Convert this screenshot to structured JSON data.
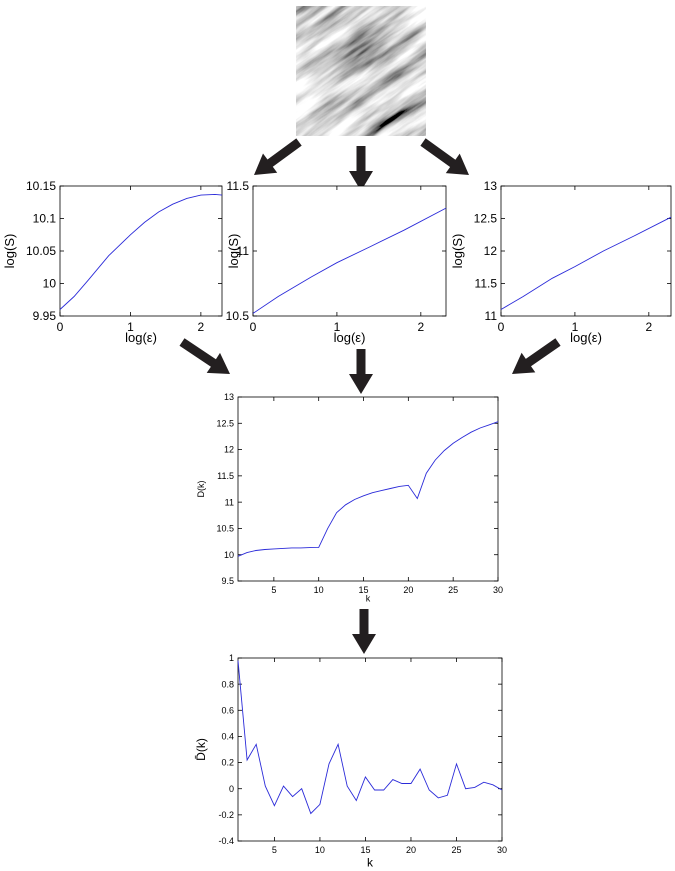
{
  "texture": {
    "icon": "grayscale-texture-image"
  },
  "arrow_color": "#231f20",
  "line_color": "#2b2bd9",
  "chart_data": [
    {
      "type": "line",
      "xlabel": "log(ε)",
      "ylabel": "log(S)",
      "xlim": [
        0,
        2.3
      ],
      "ylim": [
        9.95,
        10.15
      ],
      "xticks": [
        "0",
        "1",
        "2"
      ],
      "yticks": [
        "9.95",
        "10",
        "10.05",
        "10.1",
        "10.15"
      ],
      "x": [
        0,
        0.2,
        0.4,
        0.693,
        1.0,
        1.2,
        1.4,
        1.6,
        1.8,
        2.0,
        2.2,
        2.3
      ],
      "y": [
        9.96,
        9.98,
        10.005,
        10.043,
        10.075,
        10.094,
        10.11,
        10.122,
        10.131,
        10.136,
        10.137,
        10.136
      ]
    },
    {
      "type": "line",
      "xlabel": "log(ε)",
      "ylabel": "log(S)",
      "xlim": [
        0,
        2.3
      ],
      "ylim": [
        10.5,
        11.5
      ],
      "xticks": [
        "0",
        "1",
        "2"
      ],
      "yticks": [
        "10.5",
        "11",
        "11.5"
      ],
      "x": [
        0,
        0.3,
        0.693,
        1.0,
        1.386,
        1.8,
        2.3
      ],
      "y": [
        10.52,
        10.65,
        10.8,
        10.91,
        11.03,
        11.16,
        11.33
      ]
    },
    {
      "type": "line",
      "xlabel": "log(ε)",
      "ylabel": "log(S)",
      "xlim": [
        0,
        2.3
      ],
      "ylim": [
        11,
        13
      ],
      "xticks": [
        "0",
        "1",
        "2"
      ],
      "yticks": [
        "11",
        "11.5",
        "12",
        "12.5",
        "13"
      ],
      "x": [
        0,
        0.3,
        0.693,
        1.0,
        1.386,
        1.8,
        2.3
      ],
      "y": [
        11.1,
        11.3,
        11.58,
        11.76,
        12.0,
        12.23,
        12.52
      ]
    },
    {
      "type": "line",
      "xlabel": "k",
      "ylabel": "D(k)",
      "xlim": [
        1,
        30
      ],
      "ylim": [
        9.5,
        13
      ],
      "xticks": [
        "5",
        "10",
        "15",
        "20",
        "25",
        "30"
      ],
      "yticks": [
        "9.5",
        "10",
        "10.5",
        "11",
        "11.5",
        "12",
        "12.5",
        "13"
      ],
      "x": [
        1,
        2,
        3,
        4,
        5,
        6,
        7,
        8,
        9,
        10,
        11,
        12,
        13,
        14,
        15,
        16,
        17,
        18,
        19,
        20,
        21,
        22,
        23,
        24,
        25,
        26,
        27,
        28,
        29,
        30
      ],
      "y": [
        9.97,
        10.04,
        10.08,
        10.1,
        10.11,
        10.12,
        10.13,
        10.13,
        10.135,
        10.14,
        10.5,
        10.8,
        10.95,
        11.05,
        11.12,
        11.18,
        11.22,
        11.26,
        11.3,
        11.32,
        11.07,
        11.55,
        11.8,
        11.98,
        12.12,
        12.23,
        12.33,
        12.41,
        12.47,
        12.53
      ]
    },
    {
      "type": "line",
      "xlabel": "k",
      "ylabel": "D̄(k)",
      "xlim": [
        1,
        30
      ],
      "ylim": [
        -0.4,
        1
      ],
      "xticks": [
        "5",
        "10",
        "15",
        "20",
        "25",
        "30"
      ],
      "yticks": [
        "-0.4",
        "-0.2",
        "0",
        "0.2",
        "0.4",
        "0.6",
        "0.8",
        "1"
      ],
      "x": [
        1,
        2,
        3,
        4,
        5,
        6,
        7,
        8,
        9,
        10,
        11,
        12,
        13,
        14,
        15,
        16,
        17,
        18,
        19,
        20,
        21,
        22,
        23,
        24,
        25,
        26,
        27,
        28,
        29,
        30
      ],
      "y": [
        0.98,
        0.22,
        0.34,
        0.02,
        -0.13,
        0.02,
        -0.06,
        0.0,
        -0.19,
        -0.12,
        0.19,
        0.34,
        0.02,
        -0.09,
        0.09,
        -0.01,
        -0.01,
        0.07,
        0.04,
        0.04,
        0.15,
        -0.01,
        -0.07,
        -0.05,
        0.19,
        0.0,
        0.01,
        0.05,
        0.03,
        -0.01
      ]
    }
  ]
}
